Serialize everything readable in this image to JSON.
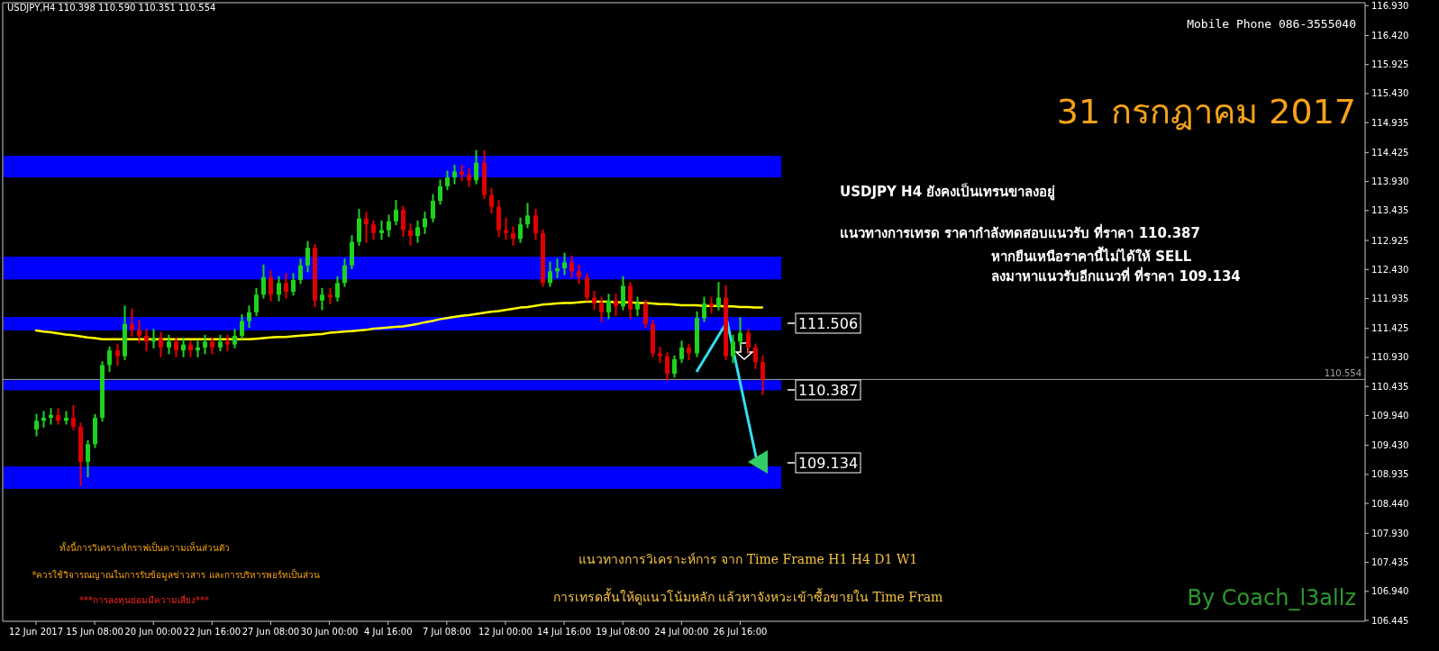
{
  "chart_data": {
    "type": "candlestick",
    "title": "USDJPY,H4 110.398 110.590 110.351 110.554",
    "categories": [
      "12 Jun 2017",
      null,
      null,
      null,
      null,
      null,
      null,
      null,
      "15 Jun 08:00",
      null,
      null,
      null,
      null,
      null,
      null,
      null,
      "20 Jun 00:00",
      null,
      null,
      null,
      null,
      null,
      null,
      null,
      "22 Jun 16:00",
      null,
      null,
      null,
      null,
      null,
      null,
      null,
      "27 Jun 08:00",
      null,
      null,
      null,
      null,
      null,
      null,
      null,
      "30 Jun 00:00",
      null,
      null,
      null,
      null,
      null,
      null,
      null,
      "4 Jul 16:00",
      null,
      null,
      null,
      null,
      null,
      null,
      null,
      "7 Jul 08:00",
      null,
      null,
      null,
      null,
      null,
      null,
      null,
      "12 Jul 00:00",
      null,
      null,
      null,
      null,
      null,
      null,
      null,
      "14 Jul 16:00",
      null,
      null,
      null,
      null,
      null,
      null,
      null,
      "19 Jul 08:00",
      null,
      null,
      null,
      null,
      null,
      null,
      null,
      "24 Jul 00:00",
      null,
      null,
      null,
      null,
      null,
      null,
      null,
      "26 Jul 16:00",
      null,
      null,
      null
    ],
    "ohlc": [
      [
        109.7,
        109.95,
        109.6,
        109.85
      ],
      [
        109.85,
        110.0,
        109.75,
        109.9
      ],
      [
        109.9,
        110.05,
        109.8,
        109.95
      ],
      [
        109.95,
        110.05,
        109.8,
        109.85
      ],
      [
        109.85,
        110.0,
        109.8,
        109.9
      ],
      [
        109.9,
        110.1,
        109.7,
        109.75
      ],
      [
        109.75,
        109.8,
        108.75,
        109.15
      ],
      [
        109.15,
        109.5,
        108.9,
        109.45
      ],
      [
        109.45,
        109.95,
        109.4,
        109.9
      ],
      [
        109.9,
        110.85,
        109.85,
        110.8
      ],
      [
        110.8,
        111.1,
        110.7,
        111.05
      ],
      [
        111.05,
        111.15,
        110.8,
        110.95
      ],
      [
        110.95,
        111.8,
        110.9,
        111.5
      ],
      [
        111.5,
        111.75,
        111.3,
        111.4
      ],
      [
        111.4,
        111.55,
        111.2,
        111.3
      ],
      [
        111.3,
        111.4,
        111.05,
        111.2
      ],
      [
        111.2,
        111.4,
        111.1,
        111.25
      ],
      [
        111.25,
        111.35,
        110.95,
        111.1
      ],
      [
        111.1,
        111.3,
        111.0,
        111.2
      ],
      [
        111.2,
        111.25,
        110.95,
        111.05
      ],
      [
        111.05,
        111.25,
        110.95,
        111.15
      ],
      [
        111.15,
        111.2,
        110.95,
        111.05
      ],
      [
        111.05,
        111.2,
        110.95,
        111.1
      ],
      [
        111.1,
        111.3,
        111.0,
        111.2
      ],
      [
        111.2,
        111.25,
        111.0,
        111.1
      ],
      [
        111.1,
        111.3,
        111.05,
        111.2
      ],
      [
        111.2,
        111.3,
        111.05,
        111.15
      ],
      [
        111.15,
        111.4,
        111.1,
        111.3
      ],
      [
        111.3,
        111.65,
        111.25,
        111.55
      ],
      [
        111.55,
        111.8,
        111.45,
        111.7
      ],
      [
        111.7,
        112.1,
        111.65,
        112.0
      ],
      [
        112.0,
        112.5,
        111.95,
        112.3
      ],
      [
        112.3,
        112.4,
        111.9,
        112.0
      ],
      [
        112.0,
        112.3,
        111.9,
        112.2
      ],
      [
        112.2,
        112.35,
        111.95,
        112.05
      ],
      [
        112.05,
        112.35,
        112.0,
        112.25
      ],
      [
        112.25,
        112.6,
        112.2,
        112.5
      ],
      [
        112.5,
        112.9,
        112.4,
        112.8
      ],
      [
        112.8,
        112.85,
        111.8,
        111.9
      ],
      [
        111.9,
        112.1,
        111.75,
        112.0
      ],
      [
        112.0,
        112.1,
        111.85,
        111.95
      ],
      [
        111.95,
        112.3,
        111.9,
        112.2
      ],
      [
        112.2,
        112.6,
        112.15,
        112.5
      ],
      [
        112.5,
        113.0,
        112.45,
        112.9
      ],
      [
        112.9,
        113.45,
        112.85,
        113.3
      ],
      [
        113.3,
        113.4,
        112.9,
        113.2
      ],
      [
        113.2,
        113.25,
        112.95,
        113.05
      ],
      [
        113.05,
        113.25,
        112.95,
        113.1
      ],
      [
        113.1,
        113.35,
        113.0,
        113.25
      ],
      [
        113.25,
        113.6,
        113.2,
        113.45
      ],
      [
        113.45,
        113.5,
        113.0,
        113.1
      ],
      [
        113.1,
        113.2,
        112.85,
        113.0
      ],
      [
        113.0,
        113.25,
        112.9,
        113.15
      ],
      [
        113.15,
        113.4,
        113.05,
        113.3
      ],
      [
        113.3,
        113.7,
        113.25,
        113.6
      ],
      [
        113.6,
        113.95,
        113.55,
        113.85
      ],
      [
        113.85,
        114.1,
        113.8,
        114.0
      ],
      [
        114.0,
        114.2,
        113.9,
        114.1
      ],
      [
        114.1,
        114.2,
        113.95,
        114.05
      ],
      [
        114.05,
        114.15,
        113.85,
        113.95
      ],
      [
        113.95,
        114.45,
        113.9,
        114.25
      ],
      [
        114.25,
        114.45,
        113.65,
        113.7
      ],
      [
        113.7,
        113.8,
        113.4,
        113.5
      ],
      [
        113.5,
        113.6,
        113.0,
        113.1
      ],
      [
        113.1,
        113.3,
        112.95,
        113.05
      ],
      [
        113.05,
        113.15,
        112.85,
        112.95
      ],
      [
        112.95,
        113.3,
        112.9,
        113.2
      ],
      [
        113.2,
        113.55,
        113.15,
        113.35
      ],
      [
        113.35,
        113.45,
        112.95,
        113.05
      ],
      [
        113.05,
        113.1,
        112.15,
        112.2
      ],
      [
        112.2,
        112.55,
        112.15,
        112.4
      ],
      [
        112.4,
        112.6,
        112.3,
        112.45
      ],
      [
        112.45,
        112.7,
        112.35,
        112.55
      ],
      [
        112.55,
        112.65,
        112.3,
        112.4
      ],
      [
        112.4,
        112.5,
        112.2,
        112.3
      ],
      [
        112.3,
        112.35,
        111.9,
        111.95
      ],
      [
        111.95,
        112.05,
        111.75,
        111.85
      ],
      [
        111.85,
        111.95,
        111.55,
        111.7
      ],
      [
        111.7,
        112.0,
        111.6,
        111.9
      ],
      [
        111.9,
        112.0,
        111.65,
        111.8
      ],
      [
        111.8,
        112.3,
        111.75,
        112.15
      ],
      [
        112.15,
        112.2,
        111.6,
        111.75
      ],
      [
        111.75,
        111.95,
        111.65,
        111.85
      ],
      [
        111.85,
        111.9,
        111.45,
        111.5
      ],
      [
        111.5,
        111.55,
        110.95,
        111.0
      ],
      [
        111.0,
        111.1,
        110.85,
        110.95
      ],
      [
        110.95,
        111.0,
        110.55,
        110.65
      ],
      [
        110.65,
        110.95,
        110.6,
        110.9
      ],
      [
        110.9,
        111.2,
        110.85,
        111.1
      ],
      [
        111.1,
        111.15,
        110.9,
        111.0
      ],
      [
        111.0,
        111.7,
        110.95,
        111.6
      ],
      [
        111.6,
        111.95,
        111.55,
        111.85
      ],
      [
        111.85,
        111.95,
        111.7,
        111.8
      ],
      [
        111.8,
        112.2,
        111.75,
        111.95
      ],
      [
        111.95,
        112.15,
        110.9,
        110.95
      ],
      [
        110.95,
        111.3,
        110.85,
        111.2
      ],
      [
        111.2,
        111.6,
        111.15,
        111.35
      ],
      [
        111.35,
        111.4,
        111.0,
        111.1
      ],
      [
        111.1,
        111.15,
        110.75,
        110.85
      ],
      [
        110.85,
        110.95,
        110.3,
        110.554
      ]
    ],
    "series": [
      {
        "type": "line",
        "color": "#ffff00",
        "values": [
          111.39,
          111.37,
          111.36,
          111.34,
          111.32,
          111.31,
          111.29,
          111.27,
          111.26,
          111.24,
          111.24,
          111.24,
          111.24,
          111.24,
          111.24,
          111.24,
          111.24,
          111.24,
          111.24,
          111.24,
          111.24,
          111.24,
          111.24,
          111.24,
          111.24,
          111.24,
          111.24,
          111.24,
          111.24,
          111.24,
          111.25,
          111.26,
          111.27,
          111.28,
          111.28,
          111.29,
          111.3,
          111.31,
          111.32,
          111.33,
          111.35,
          111.36,
          111.37,
          111.38,
          111.39,
          111.4,
          111.42,
          111.43,
          111.44,
          111.45,
          111.46,
          111.48,
          111.5,
          111.53,
          111.55,
          111.58,
          111.6,
          111.62,
          111.64,
          111.65,
          111.67,
          111.69,
          111.71,
          111.72,
          111.74,
          111.76,
          111.78,
          111.79,
          111.81,
          111.83,
          111.84,
          111.85,
          111.86,
          111.86,
          111.87,
          111.88,
          111.88,
          111.88,
          111.88,
          111.87,
          111.87,
          111.87,
          111.86,
          111.86,
          111.85,
          111.84,
          111.84,
          111.83,
          111.82,
          111.82,
          111.82,
          111.81,
          111.81,
          111.81,
          111.8,
          111.8,
          111.79,
          111.79,
          111.78,
          111.78
        ]
      }
    ],
    "ylim": [
      106.43,
      116.98
    ],
    "yticks": [
      {
        "value": 116.93,
        "label": "116.930"
      },
      {
        "value": 116.42,
        "label": "116.420"
      },
      {
        "value": 115.925,
        "label": "115.925"
      },
      {
        "value": 115.43,
        "label": "115.430"
      },
      {
        "value": 114.935,
        "label": "114.935"
      },
      {
        "value": 114.425,
        "label": "114.425"
      },
      {
        "value": 113.93,
        "label": "113.930"
      },
      {
        "value": 113.435,
        "label": "113.435"
      },
      {
        "value": 112.925,
        "label": "112.925"
      },
      {
        "value": 112.43,
        "label": "112.430"
      },
      {
        "value": 111.935,
        "label": "111.935"
      },
      {
        "value": 111.425,
        "label": "111.425"
      },
      {
        "value": 110.93,
        "label": "110.930"
      },
      {
        "value": 110.435,
        "label": "110.435"
      },
      {
        "value": 109.94,
        "label": "109.940"
      },
      {
        "value": 109.43,
        "label": "109.430"
      },
      {
        "value": 108.935,
        "label": "108.935"
      },
      {
        "value": 108.44,
        "label": "108.440"
      },
      {
        "value": 107.93,
        "label": "107.930"
      },
      {
        "value": 107.435,
        "label": "107.435"
      },
      {
        "value": 106.94,
        "label": "106.940"
      },
      {
        "value": 106.445,
        "label": "106.445"
      }
    ],
    "bands": [
      {
        "axis": "y",
        "from": 114.0,
        "to": 114.37,
        "color": "#0000ff"
      },
      {
        "axis": "y",
        "from": 112.26,
        "to": 112.65,
        "color": "#0000ff"
      },
      {
        "axis": "y",
        "from": 111.39,
        "to": 111.62,
        "color": "#0000ff"
      },
      {
        "axis": "y",
        "from": 110.37,
        "to": 110.54,
        "color": "#0000ff"
      },
      {
        "axis": "y",
        "from": 108.69,
        "to": 109.07,
        "color": "#0000ff"
      }
    ],
    "ref_lines": [
      {
        "axis": "y",
        "value": 110.554,
        "label": "110.554",
        "color": "#a0a0a0"
      }
    ],
    "annotations": [
      "Mobile Phone 086-3555040",
      "31 กรกฎาคม  2017",
      "USDJPY H4  ยังคงเป็นเทรนขาลงอยู่",
      "แนวทางการเทรด ราคากำลังทดสอบแนวรับ ที่ราคา 110.387",
      "หากยืนเหนือราคานี้ไม่ได้ให้ SELL",
      "ลงมาหาแนวรับอีกแนวที่ ที่ราคา 109.134",
      "ทั้งนี้การวิเคราะห์กราฟเป็นความเห็นส่วนตัว",
      "*ควรใช้วิจารณญาณในการรับข้อมูลข่าวสาร และการบริหารพอร์ทเป็นส่วน",
      "***การลงทุนย่อมมีความเสี่ยง***",
      "แนวทางการวิเคราะห์การ จาก Time Frame H1 H4 D1 W1",
      "การเทรดสั้นให้ดูแนวโน้มหลัก แล้วหาจังหวะเข้าซื้อขายใน Time Fram",
      "By Coach_l3allz",
      "111.506",
      "110.387",
      "109.134"
    ],
    "grid": false
  }
}
